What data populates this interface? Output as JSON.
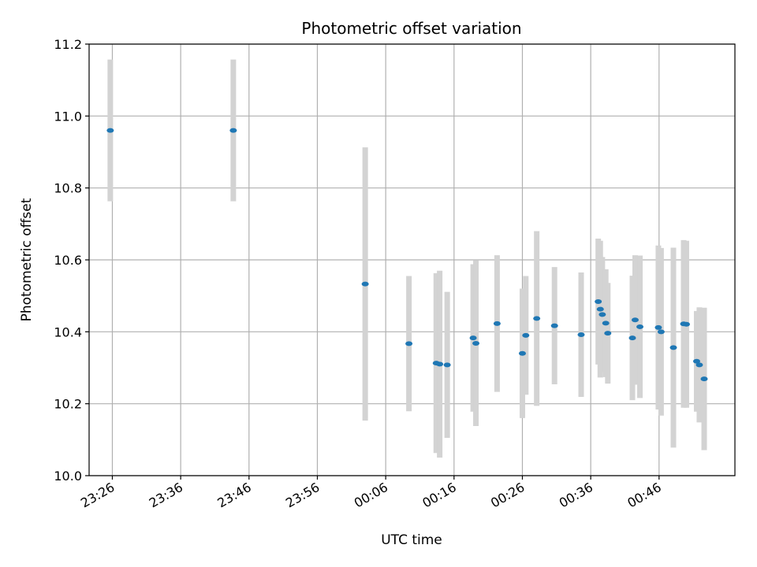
{
  "chart_data": {
    "type": "scatter",
    "title": "Photometric offset variation",
    "xlabel": "UTC time",
    "ylabel": "Photometric offset",
    "ylim": [
      10.0,
      11.2
    ],
    "xlim_minutes": [
      -37.4,
      57.1
    ],
    "x_ticks": [
      {
        "label": "23:26",
        "minutes": -34
      },
      {
        "label": "23:36",
        "minutes": -24
      },
      {
        "label": "23:46",
        "minutes": -14
      },
      {
        "label": "23:56",
        "minutes": -4
      },
      {
        "label": "00:06",
        "minutes": 6
      },
      {
        "label": "00:16",
        "minutes": 16
      },
      {
        "label": "00:26",
        "minutes": 26
      },
      {
        "label": "00:36",
        "minutes": 36
      },
      {
        "label": "00:46",
        "minutes": 46
      }
    ],
    "y_ticks": [
      "10.0",
      "10.2",
      "10.4",
      "10.6",
      "10.8",
      "11.0",
      "11.2"
    ],
    "grid": true,
    "marker_color": "#1f77b4",
    "errorbar_color": "#d3d3d3",
    "series": [
      {
        "name": "offset",
        "points": [
          {
            "t": -34.3,
            "y": 10.96,
            "err": 0.197
          },
          {
            "t": -16.3,
            "y": 10.96,
            "err": 0.197
          },
          {
            "t": 3.0,
            "y": 10.533,
            "err": 0.38
          },
          {
            "t": 9.4,
            "y": 10.367,
            "err": 0.188
          },
          {
            "t": 13.4,
            "y": 10.313,
            "err": 0.25
          },
          {
            "t": 13.9,
            "y": 10.31,
            "err": 0.26
          },
          {
            "t": 15.0,
            "y": 10.308,
            "err": 0.203
          },
          {
            "t": 18.8,
            "y": 10.383,
            "err": 0.205
          },
          {
            "t": 19.2,
            "y": 10.368,
            "err": 0.23
          },
          {
            "t": 22.3,
            "y": 10.423,
            "err": 0.19
          },
          {
            "t": 26.0,
            "y": 10.34,
            "err": 0.18
          },
          {
            "t": 26.5,
            "y": 10.39,
            "err": 0.165
          },
          {
            "t": 28.1,
            "y": 10.437,
            "err": 0.243
          },
          {
            "t": 30.7,
            "y": 10.417,
            "err": 0.163
          },
          {
            "t": 34.6,
            "y": 10.392,
            "err": 0.173
          },
          {
            "t": 37.1,
            "y": 10.484,
            "err": 0.175
          },
          {
            "t": 37.4,
            "y": 10.463,
            "err": 0.19
          },
          {
            "t": 37.7,
            "y": 10.448,
            "err": 0.16
          },
          {
            "t": 38.2,
            "y": 10.424,
            "err": 0.15
          },
          {
            "t": 38.5,
            "y": 10.396,
            "err": 0.14
          },
          {
            "t": 42.1,
            "y": 10.383,
            "err": 0.173
          },
          {
            "t": 42.5,
            "y": 10.433,
            "err": 0.18
          },
          {
            "t": 43.2,
            "y": 10.414,
            "err": 0.198
          },
          {
            "t": 45.9,
            "y": 10.412,
            "err": 0.228
          },
          {
            "t": 46.3,
            "y": 10.4,
            "err": 0.233
          },
          {
            "t": 48.1,
            "y": 10.356,
            "err": 0.278
          },
          {
            "t": 49.6,
            "y": 10.422,
            "err": 0.233
          },
          {
            "t": 50.0,
            "y": 10.421,
            "err": 0.232
          },
          {
            "t": 51.5,
            "y": 10.318,
            "err": 0.14
          },
          {
            "t": 51.9,
            "y": 10.308,
            "err": 0.16
          },
          {
            "t": 52.6,
            "y": 10.269,
            "err": 0.198
          }
        ]
      }
    ]
  }
}
